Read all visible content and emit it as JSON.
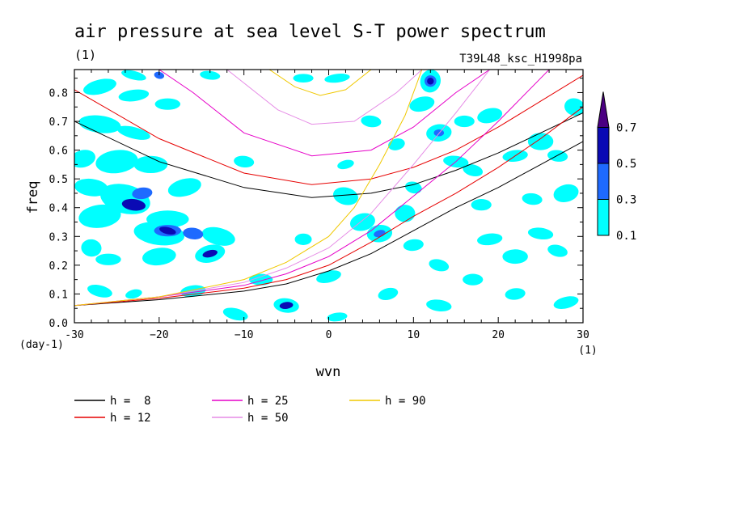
{
  "chart_data": {
    "type": "heatmap",
    "title": "air pressure at sea level S-T power spectrum",
    "subtitle_left": "(1)",
    "subtitle_right": "T39L48_ksc_H1998pa",
    "xlabel": "wvn",
    "ylabel": "freq",
    "x_unit": "(1)",
    "y_unit": "(day-1)",
    "xlim": [
      -30,
      30
    ],
    "ylim": [
      0,
      0.88
    ],
    "xticks": [
      -30,
      -20,
      -10,
      0,
      10,
      20,
      30
    ],
    "xtick_labels": [
      "-30",
      "−20",
      "−10",
      "0",
      "10",
      "20",
      "30"
    ],
    "yticks": [
      0,
      0.1,
      0.2,
      0.3,
      0.4,
      0.5,
      0.6,
      0.7,
      0.8
    ],
    "ytick_labels": [
      "0.0",
      "0.1",
      "0.2",
      "0.3",
      "0.4",
      "0.5",
      "0.6",
      "0.7",
      "0.8"
    ],
    "colorbar": {
      "levels": [
        0.1,
        0.3,
        0.5,
        0.7
      ],
      "labels": [
        "0.1",
        "0.3",
        "0.5",
        "0.7"
      ],
      "colors": [
        "#00ffff",
        "#1e6aff",
        "#0a0ab4",
        "#4b0082"
      ]
    },
    "legend": [
      {
        "label": "h =  8",
        "color": "#000000"
      },
      {
        "label": "h = 25",
        "color": "#e600c8"
      },
      {
        "label": "h = 90",
        "color": "#f0c800"
      },
      {
        "label": "h = 12",
        "color": "#e60000"
      },
      {
        "label": "h = 50",
        "color": "#e68ce6"
      }
    ],
    "dispersion_curves": [
      {
        "h": 8,
        "color": "#000000",
        "westward": [
          [
            -30,
            0.06
          ],
          [
            -20,
            0.08
          ],
          [
            -10,
            0.11
          ],
          [
            -5,
            0.135
          ],
          [
            0,
            0.18
          ],
          [
            5,
            0.24
          ],
          [
            10,
            0.32
          ],
          [
            15,
            0.4
          ],
          [
            20,
            0.47
          ],
          [
            25,
            0.55
          ],
          [
            30,
            0.63
          ]
        ],
        "eastward": [
          [
            -30,
            0.7
          ],
          [
            -20,
            0.56
          ],
          [
            -10,
            0.47
          ],
          [
            -2,
            0.435
          ],
          [
            5,
            0.45
          ],
          [
            10,
            0.48
          ],
          [
            15,
            0.53
          ],
          [
            20,
            0.59
          ],
          [
            25,
            0.66
          ],
          [
            30,
            0.73
          ]
        ]
      },
      {
        "h": 12,
        "color": "#e60000",
        "westward": [
          [
            -30,
            0.06
          ],
          [
            -20,
            0.085
          ],
          [
            -10,
            0.12
          ],
          [
            -5,
            0.15
          ],
          [
            0,
            0.2
          ],
          [
            5,
            0.28
          ],
          [
            10,
            0.37
          ],
          [
            15,
            0.45
          ],
          [
            20,
            0.54
          ],
          [
            25,
            0.64
          ],
          [
            30,
            0.75
          ]
        ],
        "eastward": [
          [
            -30,
            0.81
          ],
          [
            -20,
            0.64
          ],
          [
            -10,
            0.52
          ],
          [
            -2,
            0.48
          ],
          [
            5,
            0.5
          ],
          [
            10,
            0.54
          ],
          [
            15,
            0.6
          ],
          [
            20,
            0.68
          ],
          [
            25,
            0.77
          ],
          [
            30,
            0.86
          ]
        ]
      },
      {
        "h": 25,
        "color": "#e600c8",
        "westward": [
          [
            -30,
            0.06
          ],
          [
            -20,
            0.09
          ],
          [
            -10,
            0.13
          ],
          [
            -5,
            0.17
          ],
          [
            0,
            0.23
          ],
          [
            5,
            0.32
          ],
          [
            10,
            0.44
          ],
          [
            15,
            0.56
          ],
          [
            20,
            0.7
          ],
          [
            25,
            0.85
          ],
          [
            26,
            0.88
          ]
        ],
        "eastward": [
          [
            -20,
            0.88
          ],
          [
            -16,
            0.8
          ],
          [
            -10,
            0.66
          ],
          [
            -2,
            0.58
          ],
          [
            5,
            0.6
          ],
          [
            10,
            0.68
          ],
          [
            15,
            0.8
          ],
          [
            19,
            0.88
          ]
        ]
      },
      {
        "h": 50,
        "color": "#e68ce6",
        "westward": [
          [
            -30,
            0.06
          ],
          [
            -20,
            0.09
          ],
          [
            -10,
            0.14
          ],
          [
            -5,
            0.19
          ],
          [
            0,
            0.26
          ],
          [
            5,
            0.38
          ],
          [
            10,
            0.55
          ],
          [
            15,
            0.73
          ],
          [
            19,
            0.88
          ]
        ],
        "eastward": [
          [
            -12,
            0.88
          ],
          [
            -6,
            0.74
          ],
          [
            -2,
            0.69
          ],
          [
            3,
            0.7
          ],
          [
            8,
            0.8
          ],
          [
            11,
            0.88
          ]
        ]
      },
      {
        "h": 90,
        "color": "#f0c800",
        "westward": [
          [
            -30,
            0.06
          ],
          [
            -20,
            0.09
          ],
          [
            -10,
            0.15
          ],
          [
            -5,
            0.21
          ],
          [
            0,
            0.3
          ],
          [
            3,
            0.4
          ],
          [
            6,
            0.55
          ],
          [
            9,
            0.72
          ],
          [
            11,
            0.88
          ]
        ],
        "eastward": [
          [
            -7,
            0.88
          ],
          [
            -4,
            0.82
          ],
          [
            -1,
            0.79
          ],
          [
            2,
            0.81
          ],
          [
            5,
            0.88
          ]
        ]
      }
    ],
    "contour_blobs": [
      {
        "x": -27,
        "y": 0.82,
        "rx": 2.0,
        "ry": 0.025,
        "level": 0
      },
      {
        "x": -23,
        "y": 0.79,
        "rx": 1.8,
        "ry": 0.02,
        "level": 0
      },
      {
        "x": -19,
        "y": 0.76,
        "rx": 1.5,
        "ry": 0.02,
        "level": 0
      },
      {
        "x": -27,
        "y": 0.69,
        "rx": 2.5,
        "ry": 0.03,
        "level": 0
      },
      {
        "x": -23,
        "y": 0.66,
        "rx": 2.0,
        "ry": 0.02,
        "level": 0
      },
      {
        "x": -29,
        "y": 0.57,
        "rx": 1.5,
        "ry": 0.03,
        "level": 0
      },
      {
        "x": -25,
        "y": 0.56,
        "rx": 2.5,
        "ry": 0.04,
        "level": 0
      },
      {
        "x": -21,
        "y": 0.55,
        "rx": 2.0,
        "ry": 0.03,
        "level": 0
      },
      {
        "x": -28,
        "y": 0.47,
        "rx": 2.0,
        "ry": 0.03,
        "level": 0
      },
      {
        "x": -24,
        "y": 0.43,
        "rx": 3.0,
        "ry": 0.05,
        "level": 0
      },
      {
        "x": -22,
        "y": 0.45,
        "rx": 1.2,
        "ry": 0.02,
        "level": 1
      },
      {
        "x": -23,
        "y": 0.41,
        "rx": 1.4,
        "ry": 0.02,
        "level": 2
      },
      {
        "x": -17,
        "y": 0.47,
        "rx": 2.0,
        "ry": 0.03,
        "level": 0
      },
      {
        "x": -27,
        "y": 0.37,
        "rx": 2.5,
        "ry": 0.04,
        "level": 0
      },
      {
        "x": -19,
        "y": 0.36,
        "rx": 2.5,
        "ry": 0.03,
        "level": 0
      },
      {
        "x": -20,
        "y": 0.31,
        "rx": 3.0,
        "ry": 0.04,
        "level": 0
      },
      {
        "x": -19,
        "y": 0.32,
        "rx": 1.6,
        "ry": 0.02,
        "level": 1
      },
      {
        "x": -19,
        "y": 0.32,
        "rx": 1.0,
        "ry": 0.012,
        "level": 2
      },
      {
        "x": -16,
        "y": 0.31,
        "rx": 1.2,
        "ry": 0.02,
        "level": 1
      },
      {
        "x": -13,
        "y": 0.3,
        "rx": 2.0,
        "ry": 0.03,
        "level": 0
      },
      {
        "x": -14,
        "y": 0.24,
        "rx": 1.8,
        "ry": 0.03,
        "level": 0
      },
      {
        "x": -14,
        "y": 0.24,
        "rx": 0.9,
        "ry": 0.012,
        "level": 2
      },
      {
        "x": -20,
        "y": 0.23,
        "rx": 2.0,
        "ry": 0.03,
        "level": 0
      },
      {
        "x": -26,
        "y": 0.22,
        "rx": 1.5,
        "ry": 0.02,
        "level": 0
      },
      {
        "x": -28,
        "y": 0.26,
        "rx": 1.2,
        "ry": 0.03,
        "level": 0
      },
      {
        "x": -27,
        "y": 0.11,
        "rx": 1.5,
        "ry": 0.02,
        "level": 0
      },
      {
        "x": -23,
        "y": 0.1,
        "rx": 1.0,
        "ry": 0.015,
        "level": 0
      },
      {
        "x": -16,
        "y": 0.11,
        "rx": 1.5,
        "ry": 0.02,
        "level": 0
      },
      {
        "x": -8,
        "y": 0.15,
        "rx": 1.4,
        "ry": 0.02,
        "level": 0
      },
      {
        "x": -5,
        "y": 0.06,
        "rx": 1.5,
        "ry": 0.025,
        "level": 0
      },
      {
        "x": -5,
        "y": 0.06,
        "rx": 0.8,
        "ry": 0.012,
        "level": 2
      },
      {
        "x": -11,
        "y": 0.03,
        "rx": 1.5,
        "ry": 0.02,
        "level": 0
      },
      {
        "x": 0,
        "y": 0.16,
        "rx": 1.5,
        "ry": 0.02,
        "level": 0
      },
      {
        "x": 1,
        "y": 0.02,
        "rx": 1.2,
        "ry": 0.015,
        "level": 0
      },
      {
        "x": -3,
        "y": 0.29,
        "rx": 1.0,
        "ry": 0.02,
        "level": 0
      },
      {
        "x": -10,
        "y": 0.56,
        "rx": 1.2,
        "ry": 0.02,
        "level": 0
      },
      {
        "x": 2,
        "y": 0.44,
        "rx": 1.5,
        "ry": 0.03,
        "level": 0
      },
      {
        "x": 2,
        "y": 0.55,
        "rx": 1.0,
        "ry": 0.015,
        "level": 0
      },
      {
        "x": 1,
        "y": 0.85,
        "rx": 1.5,
        "ry": 0.015,
        "level": 0
      },
      {
        "x": -3,
        "y": 0.85,
        "rx": 1.2,
        "ry": 0.015,
        "level": 0
      },
      {
        "x": -14,
        "y": 0.86,
        "rx": 1.2,
        "ry": 0.015,
        "level": 0
      },
      {
        "x": -23,
        "y": 0.86,
        "rx": 1.5,
        "ry": 0.015,
        "level": 0
      },
      {
        "x": -20,
        "y": 0.86,
        "rx": 0.6,
        "ry": 0.012,
        "level": 1
      },
      {
        "x": 4,
        "y": 0.35,
        "rx": 1.5,
        "ry": 0.03,
        "level": 0
      },
      {
        "x": 6,
        "y": 0.31,
        "rx": 1.5,
        "ry": 0.03,
        "level": 0
      },
      {
        "x": 6,
        "y": 0.31,
        "rx": 0.7,
        "ry": 0.012,
        "level": 1
      },
      {
        "x": 9,
        "y": 0.38,
        "rx": 1.2,
        "ry": 0.03,
        "level": 0
      },
      {
        "x": 5,
        "y": 0.7,
        "rx": 1.2,
        "ry": 0.02,
        "level": 0
      },
      {
        "x": 12,
        "y": 0.84,
        "rx": 1.2,
        "ry": 0.04,
        "level": 0
      },
      {
        "x": 12,
        "y": 0.84,
        "rx": 0.7,
        "ry": 0.02,
        "level": 1
      },
      {
        "x": 12,
        "y": 0.84,
        "rx": 0.4,
        "ry": 0.012,
        "level": 2
      },
      {
        "x": 11,
        "y": 0.76,
        "rx": 1.5,
        "ry": 0.025,
        "level": 0
      },
      {
        "x": 13,
        "y": 0.66,
        "rx": 1.5,
        "ry": 0.03,
        "level": 0
      },
      {
        "x": 13,
        "y": 0.66,
        "rx": 0.6,
        "ry": 0.012,
        "level": 1
      },
      {
        "x": 16,
        "y": 0.7,
        "rx": 1.2,
        "ry": 0.02,
        "level": 0
      },
      {
        "x": 15,
        "y": 0.56,
        "rx": 1.5,
        "ry": 0.02,
        "level": 0
      },
      {
        "x": 17,
        "y": 0.53,
        "rx": 1.2,
        "ry": 0.02,
        "level": 0
      },
      {
        "x": 19,
        "y": 0.72,
        "rx": 1.5,
        "ry": 0.025,
        "level": 0
      },
      {
        "x": 22,
        "y": 0.58,
        "rx": 1.5,
        "ry": 0.02,
        "level": 0
      },
      {
        "x": 25,
        "y": 0.63,
        "rx": 1.5,
        "ry": 0.03,
        "level": 0
      },
      {
        "x": 27,
        "y": 0.58,
        "rx": 1.2,
        "ry": 0.02,
        "level": 0
      },
      {
        "x": 29,
        "y": 0.75,
        "rx": 1.2,
        "ry": 0.03,
        "level": 0
      },
      {
        "x": 28,
        "y": 0.45,
        "rx": 1.5,
        "ry": 0.03,
        "level": 0
      },
      {
        "x": 19,
        "y": 0.29,
        "rx": 1.5,
        "ry": 0.02,
        "level": 0
      },
      {
        "x": 22,
        "y": 0.23,
        "rx": 1.5,
        "ry": 0.025,
        "level": 0
      },
      {
        "x": 25,
        "y": 0.31,
        "rx": 1.5,
        "ry": 0.02,
        "level": 0
      },
      {
        "x": 27,
        "y": 0.25,
        "rx": 1.2,
        "ry": 0.02,
        "level": 0
      },
      {
        "x": 28,
        "y": 0.07,
        "rx": 1.5,
        "ry": 0.02,
        "level": 0
      },
      {
        "x": 22,
        "y": 0.1,
        "rx": 1.2,
        "ry": 0.02,
        "level": 0
      },
      {
        "x": 17,
        "y": 0.15,
        "rx": 1.2,
        "ry": 0.02,
        "level": 0
      },
      {
        "x": 13,
        "y": 0.06,
        "rx": 1.5,
        "ry": 0.02,
        "level": 0
      },
      {
        "x": 13,
        "y": 0.2,
        "rx": 1.2,
        "ry": 0.02,
        "level": 0
      },
      {
        "x": 7,
        "y": 0.1,
        "rx": 1.2,
        "ry": 0.02,
        "level": 0
      },
      {
        "x": 10,
        "y": 0.27,
        "rx": 1.2,
        "ry": 0.02,
        "level": 0
      },
      {
        "x": 18,
        "y": 0.41,
        "rx": 1.2,
        "ry": 0.02,
        "level": 0
      },
      {
        "x": 24,
        "y": 0.43,
        "rx": 1.2,
        "ry": 0.02,
        "level": 0
      },
      {
        "x": 10,
        "y": 0.47,
        "rx": 1.0,
        "ry": 0.02,
        "level": 0
      },
      {
        "x": 8,
        "y": 0.62,
        "rx": 1.0,
        "ry": 0.02,
        "level": 0
      }
    ]
  }
}
